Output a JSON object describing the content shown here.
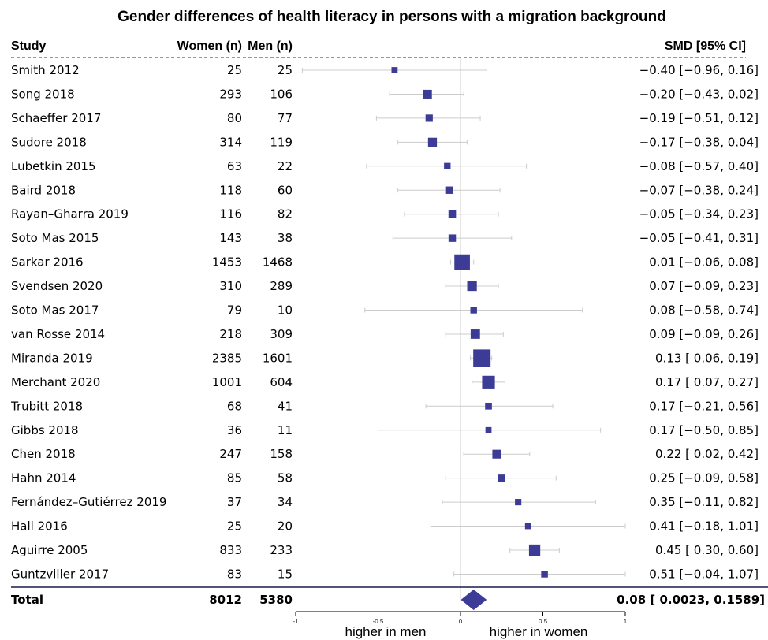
{
  "title": "Gender differences of health literacy in persons with a migration background",
  "columns": {
    "study": "Study",
    "women": "Women (n)",
    "men": "Men (n)",
    "smd": "SMD [95% CI]"
  },
  "total": {
    "label": "Total",
    "women": "8012",
    "men": "5380",
    "smd_text": "0.08 [ 0.0023, 0.1589]",
    "smd": 0.08,
    "lower": 0.0023,
    "upper": 0.1589
  },
  "axis_labels": {
    "left": "higher in men",
    "right": "higher in women"
  },
  "colors": {
    "marker": "#3c3c96",
    "ci_line": "#cccccc",
    "zero_line": "#cccccc"
  },
  "chart_data": {
    "type": "forest",
    "xlim": [
      -1,
      1
    ],
    "x_ticks": [
      -1,
      -0.5,
      0,
      0.5,
      1
    ],
    "x_tick_labels": [
      "-1",
      "-0.5",
      "0",
      "0.5",
      "1"
    ],
    "rows": [
      {
        "study": "Smith 2012",
        "women": "25",
        "men": "25",
        "smd": -0.4,
        "lower": -0.96,
        "upper": 0.16,
        "smd_text": "−0.40 [−0.96, 0.16]"
      },
      {
        "study": "Song 2018",
        "women": "293",
        "men": "106",
        "smd": -0.2,
        "lower": -0.43,
        "upper": 0.02,
        "smd_text": "−0.20 [−0.43, 0.02]"
      },
      {
        "study": "Schaeffer 2017",
        "women": "80",
        "men": "77",
        "smd": -0.19,
        "lower": -0.51,
        "upper": 0.12,
        "smd_text": "−0.19 [−0.51, 0.12]"
      },
      {
        "study": "Sudore 2018",
        "women": "314",
        "men": "119",
        "smd": -0.17,
        "lower": -0.38,
        "upper": 0.04,
        "smd_text": "−0.17 [−0.38, 0.04]"
      },
      {
        "study": "Lubetkin 2015",
        "women": "63",
        "men": "22",
        "smd": -0.08,
        "lower": -0.57,
        "upper": 0.4,
        "smd_text": "−0.08 [−0.57, 0.40]"
      },
      {
        "study": "Baird 2018",
        "women": "118",
        "men": "60",
        "smd": -0.07,
        "lower": -0.38,
        "upper": 0.24,
        "smd_text": "−0.07 [−0.38, 0.24]"
      },
      {
        "study": "Rayan–Gharra 2019",
        "women": "116",
        "men": "82",
        "smd": -0.05,
        "lower": -0.34,
        "upper": 0.23,
        "smd_text": "−0.05 [−0.34, 0.23]"
      },
      {
        "study": "Soto Mas 2015",
        "women": "143",
        "men": "38",
        "smd": -0.05,
        "lower": -0.41,
        "upper": 0.31,
        "smd_text": "−0.05 [−0.41, 0.31]"
      },
      {
        "study": "Sarkar 2016",
        "women": "1453",
        "men": "1468",
        "smd": 0.01,
        "lower": -0.06,
        "upper": 0.08,
        "smd_text": "0.01 [−0.06, 0.08]"
      },
      {
        "study": "Svendsen 2020",
        "women": "310",
        "men": "289",
        "smd": 0.07,
        "lower": -0.09,
        "upper": 0.23,
        "smd_text": "0.07 [−0.09, 0.23]"
      },
      {
        "study": "Soto Mas 2017",
        "women": "79",
        "men": "10",
        "smd": 0.08,
        "lower": -0.58,
        "upper": 0.74,
        "smd_text": "0.08 [−0.58, 0.74]"
      },
      {
        "study": "van Rosse 2014",
        "women": "218",
        "men": "309",
        "smd": 0.09,
        "lower": -0.09,
        "upper": 0.26,
        "smd_text": "0.09 [−0.09, 0.26]"
      },
      {
        "study": "Miranda 2019",
        "women": "2385",
        "men": "1601",
        "smd": 0.13,
        "lower": 0.06,
        "upper": 0.19,
        "smd_text": "0.13 [ 0.06, 0.19]"
      },
      {
        "study": "Merchant 2020",
        "women": "1001",
        "men": "604",
        "smd": 0.17,
        "lower": 0.07,
        "upper": 0.27,
        "smd_text": "0.17 [ 0.07, 0.27]"
      },
      {
        "study": "Trubitt 2018",
        "women": "68",
        "men": "41",
        "smd": 0.17,
        "lower": -0.21,
        "upper": 0.56,
        "smd_text": "0.17 [−0.21, 0.56]"
      },
      {
        "study": "Gibbs 2018",
        "women": "36",
        "men": "11",
        "smd": 0.17,
        "lower": -0.5,
        "upper": 0.85,
        "smd_text": "0.17 [−0.50, 0.85]"
      },
      {
        "study": "Chen 2018",
        "women": "247",
        "men": "158",
        "smd": 0.22,
        "lower": 0.02,
        "upper": 0.42,
        "smd_text": "0.22 [ 0.02, 0.42]"
      },
      {
        "study": "Hahn 2014",
        "women": "85",
        "men": "58",
        "smd": 0.25,
        "lower": -0.09,
        "upper": 0.58,
        "smd_text": "0.25 [−0.09, 0.58]"
      },
      {
        "study": "Fernández–Gutiérrez 2019",
        "women": "37",
        "men": "34",
        "smd": 0.35,
        "lower": -0.11,
        "upper": 0.82,
        "smd_text": "0.35 [−0.11, 0.82]"
      },
      {
        "study": "Hall 2016",
        "women": "25",
        "men": "20",
        "smd": 0.41,
        "lower": -0.18,
        "upper": 1.01,
        "smd_text": "0.41 [−0.18, 1.01]"
      },
      {
        "study": "Aguirre 2005",
        "women": "833",
        "men": "233",
        "smd": 0.45,
        "lower": 0.3,
        "upper": 0.6,
        "smd_text": "0.45 [ 0.30, 0.60]"
      },
      {
        "study": "Guntzviller 2017",
        "women": "83",
        "men": "15",
        "smd": 0.51,
        "lower": -0.04,
        "upper": 1.07,
        "smd_text": "0.51 [−0.04, 1.07]"
      }
    ]
  }
}
